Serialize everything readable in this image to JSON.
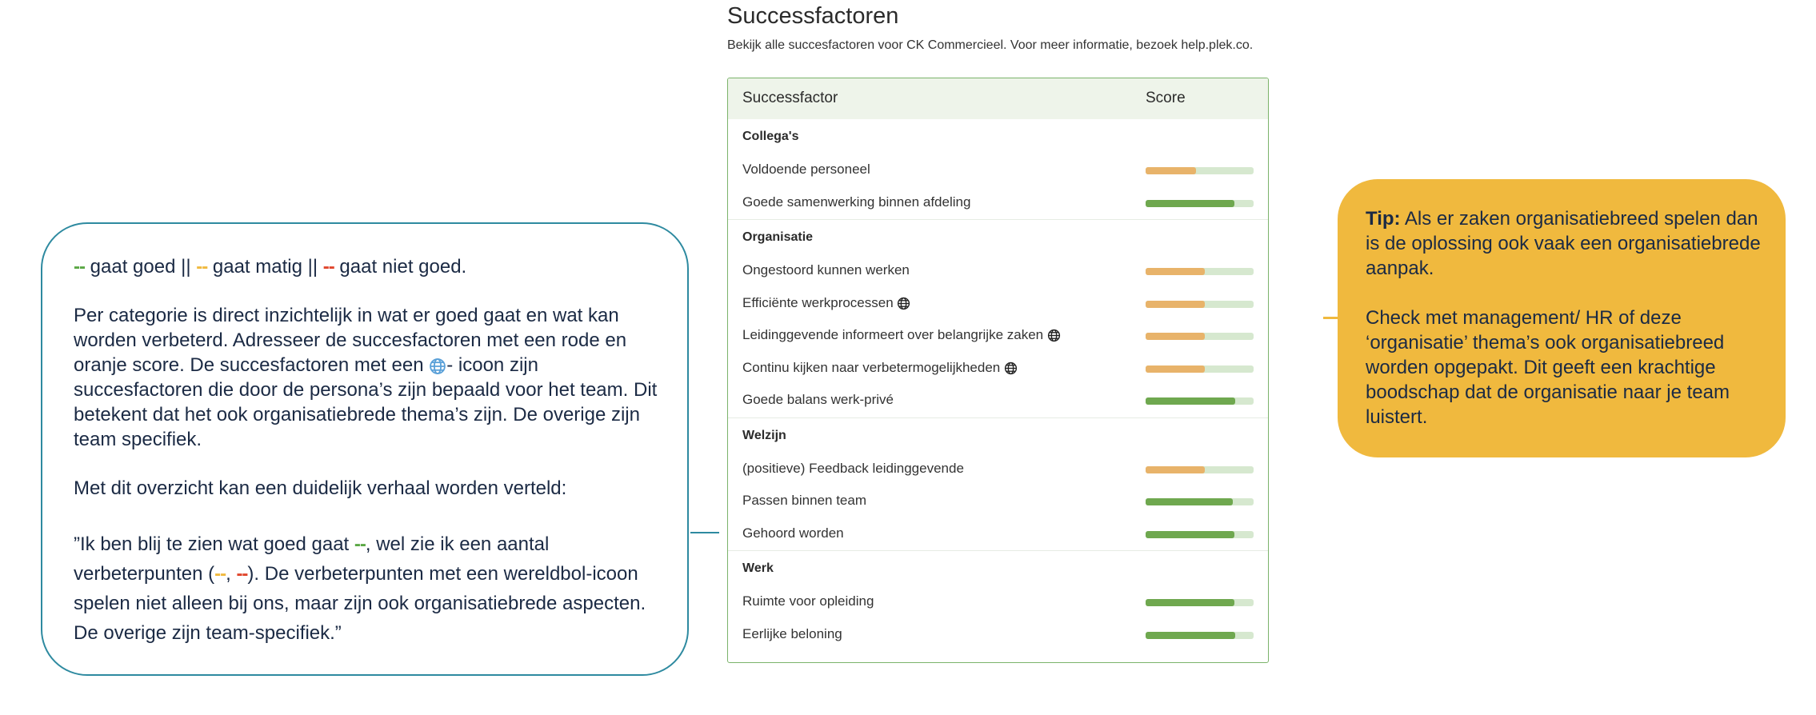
{
  "notes": {
    "legend": [
      {
        "mark": "--",
        "text": "gaat goed ||",
        "color": "#5aa744"
      },
      {
        "mark": "--",
        "text": "gaat matig ||",
        "color": "#f0b93e"
      },
      {
        "mark": "--",
        "text": "gaat niet goed.",
        "color": "#e0452b"
      }
    ],
    "paragraph_1": [
      "Per categorie is direct inzichtelijk in wat er goed gaat en wat kan worden verbeterd. Adresseer de succesfactoren met een rode en oranje score. De succesfactoren met een",
      "- icoon zijn succesfactoren die door de persona’s zijn bepaald voor het team. Dit betekent dat het ook organisatiebrede thema’s zijn. De overige zijn team specifiek."
    ],
    "paragraph_2": "Met dit overzicht kan een duidelijk verhaal worden verteld:",
    "quote": [
      {
        "text": "”Ik ben blij te zien wat goed gaat "
      },
      {
        "text": "--",
        "color": "#5aa744"
      },
      {
        "text": ", wel zie ik een aantal verbeterpunten ("
      },
      {
        "text": "--",
        "color": "#f0b93e"
      },
      {
        "text": ", "
      },
      {
        "text": "--",
        "color": "#e0452b"
      },
      {
        "text": "). De verbeterpunten met een wereldbol-icoon spelen niet alleen bij ons, maar zijn ook organisatiebrede aspecten. De overige zijn team-specifiek.”"
      }
    ]
  },
  "panel": {
    "title": "Successfactoren",
    "subtitle": "Bekijk alle succesfactoren voor CK Commercieel. Voor meer informatie, bezoek help.plek.co.",
    "columns": [
      "Successfactor",
      "Score"
    ],
    "groups": [
      {
        "name": "Collega's",
        "rows": [
          {
            "label": "Voldoende personeel",
            "score": 47,
            "color": "#e8b36a",
            "global": false
          },
          {
            "label": "Goede samenwerking binnen afdeling",
            "score": 82,
            "color": "#6fa84f",
            "global": false
          }
        ]
      },
      {
        "name": "Organisatie",
        "rows": [
          {
            "label": "Ongestoord kunnen werken",
            "score": 55,
            "color": "#e8b36a",
            "global": false
          },
          {
            "label": "Efficiënte werkprocessen",
            "score": 55,
            "color": "#e8b36a",
            "global": true
          },
          {
            "label": "Leidinggevende informeert over belangrijke zaken",
            "score": 55,
            "color": "#e8b36a",
            "global": true
          },
          {
            "label": "Continu kijken naar verbetermogelijkheden",
            "score": 55,
            "color": "#e8b36a",
            "global": true
          },
          {
            "label": "Goede balans werk-privé",
            "score": 83,
            "color": "#6fa84f",
            "global": false
          }
        ]
      },
      {
        "name": "Welzijn",
        "rows": [
          {
            "label": "(positieve) Feedback leidinggevende",
            "score": 55,
            "color": "#e8b36a",
            "global": false
          },
          {
            "label": "Passen binnen team",
            "score": 81,
            "color": "#6fa84f",
            "global": false
          },
          {
            "label": "Gehoord worden",
            "score": 82,
            "color": "#6fa84f",
            "global": false
          }
        ]
      },
      {
        "name": "Werk",
        "rows": [
          {
            "label": "Ruimte voor opleiding",
            "score": 82,
            "color": "#6fa84f",
            "global": false
          },
          {
            "label": "Eerlijke beloning",
            "score": 83,
            "color": "#6fa84f",
            "global": false
          }
        ]
      }
    ]
  },
  "tip": {
    "label": "Tip:",
    "text": "Als er zaken organisatiebreed spelen dan is de oplossing ook vaak een organisatiebrede aanpak.",
    "text_2": "Check met management/ HR of deze ‘organisatie’ thema’s ook organisatiebreed worden opgepakt. Dit geeft een krachtige boodschap dat de organisatie naar je team luistert."
  }
}
